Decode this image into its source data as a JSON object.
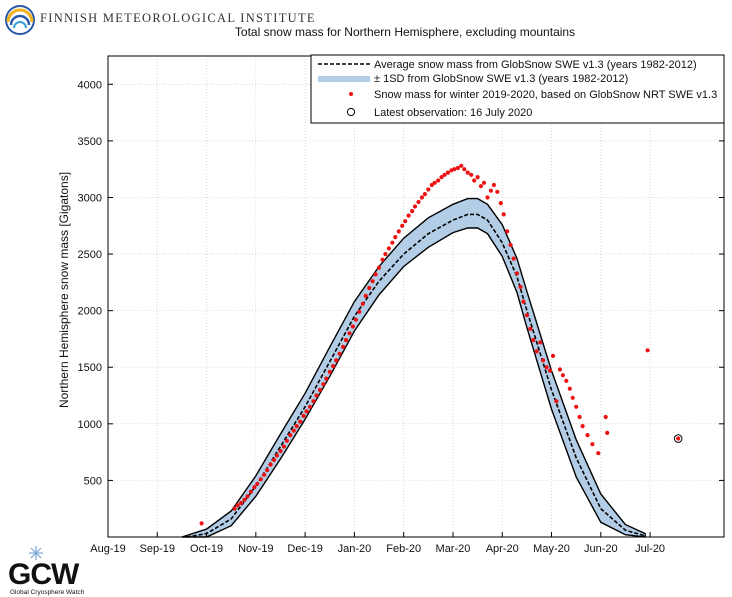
{
  "header": {
    "institute_name": "FINNISH METEOROLOGICAL INSTITUTE",
    "gcw_logo_text": "GCW",
    "gcw_subtitle": "Global Cryosphere Watch"
  },
  "colors": {
    "average_line": "#000000",
    "sd_band": "#b3cde6",
    "observations": "#ee1111",
    "latest_ring": "#000000"
  },
  "chart_data": {
    "type": "line",
    "title": "Total snow mass for Northern Hemisphere, excluding mountains",
    "xlabel": "",
    "ylabel": "Northern Hemisphere snow mass [Gigatons]",
    "categories": [
      "Aug-19",
      "Sep-19",
      "Oct-19",
      "Nov-19",
      "Dec-19",
      "Jan-20",
      "Feb-20",
      "Mar-20",
      "Apr-20",
      "May-20",
      "Jun-20",
      "Jul-20"
    ],
    "xlim_months": [
      0,
      12.5
    ],
    "ylim": [
      0,
      4250
    ],
    "yticks": [
      500,
      1000,
      1500,
      2000,
      2500,
      3000,
      3500,
      4000
    ],
    "grid": true,
    "legend_position": "top-right",
    "series": [
      {
        "name": "Average snow mass from GlobSnow SWE v1.3 (years 1982-2012)",
        "style": "dashed-line",
        "x": [
          1.6,
          2.0,
          2.5,
          3.0,
          3.5,
          4.0,
          4.5,
          5.0,
          5.5,
          6.0,
          6.5,
          7.0,
          7.3,
          7.5,
          7.7,
          8.0,
          8.3,
          8.5,
          9.0,
          9.5,
          10.0,
          10.5,
          10.9
        ],
        "y": [
          0,
          30,
          160,
          450,
          800,
          1150,
          1550,
          1950,
          2260,
          2500,
          2680,
          2800,
          2850,
          2850,
          2800,
          2600,
          2300,
          2000,
          1300,
          700,
          250,
          60,
          10
        ]
      },
      {
        "name": "± 1SD from GlobSnow SWE v1.3 (years 1982-2012)",
        "style": "band",
        "x": [
          1.5,
          2.0,
          2.5,
          3.0,
          3.5,
          4.0,
          4.5,
          5.0,
          5.5,
          6.0,
          6.5,
          7.0,
          7.3,
          7.5,
          7.7,
          8.0,
          8.3,
          8.5,
          9.0,
          9.5,
          10.0,
          10.5,
          10.9
        ],
        "lower": [
          0,
          0,
          100,
          360,
          690,
          1040,
          1420,
          1820,
          2140,
          2390,
          2560,
          2690,
          2730,
          2730,
          2680,
          2480,
          2160,
          1850,
          1130,
          530,
          130,
          20,
          0
        ],
        "upper": [
          0,
          70,
          230,
          540,
          910,
          1270,
          1680,
          2080,
          2390,
          2640,
          2820,
          2940,
          2990,
          2990,
          2940,
          2760,
          2460,
          2170,
          1470,
          860,
          380,
          110,
          30
        ]
      },
      {
        "name": "Snow mass for winter 2019-2020, based on GlobSnow NRT SWE v1.3",
        "style": "dots",
        "x": [
          1.9,
          2.57,
          2.63,
          2.7,
          2.77,
          2.83,
          2.9,
          2.97,
          3.03,
          3.1,
          3.17,
          3.23,
          3.3,
          3.37,
          3.43,
          3.5,
          3.57,
          3.63,
          3.7,
          3.77,
          3.83,
          3.9,
          3.97,
          4.03,
          4.1,
          4.17,
          4.23,
          4.3,
          4.37,
          4.43,
          4.5,
          4.57,
          4.63,
          4.7,
          4.77,
          4.83,
          4.9,
          4.97,
          5.03,
          5.1,
          5.17,
          5.23,
          5.3,
          5.37,
          5.43,
          5.5,
          5.57,
          5.63,
          5.7,
          5.77,
          5.83,
          5.9,
          5.97,
          6.03,
          6.1,
          6.17,
          6.23,
          6.3,
          6.37,
          6.43,
          6.5,
          6.57,
          6.63,
          6.7,
          6.77,
          6.83,
          6.9,
          6.97,
          7.03,
          7.1,
          7.17,
          7.23,
          7.3,
          7.37,
          7.43,
          7.5,
          7.57,
          7.63,
          7.7,
          7.77,
          7.83,
          7.9,
          7.97,
          8.03,
          8.1,
          8.17,
          8.23,
          8.3,
          8.37,
          8.43,
          8.5,
          8.57,
          8.63,
          8.7,
          8.77,
          8.83,
          8.9,
          8.97,
          9.03,
          9.1,
          9.17,
          9.23,
          9.3,
          9.37,
          9.43,
          9.5,
          9.57,
          9.63,
          9.73,
          9.83,
          9.95,
          10.1,
          10.13,
          10.95
        ],
        "y": [
          120,
          250,
          280,
          300,
          330,
          360,
          400,
          440,
          470,
          510,
          550,
          590,
          640,
          680,
          720,
          760,
          800,
          850,
          900,
          940,
          980,
          1020,
          1070,
          1110,
          1150,
          1200,
          1250,
          1300,
          1350,
          1400,
          1460,
          1510,
          1560,
          1620,
          1680,
          1740,
          1800,
          1860,
          1920,
          1990,
          2060,
          2130,
          2200,
          2260,
          2320,
          2380,
          2450,
          2500,
          2550,
          2600,
          2650,
          2700,
          2750,
          2790,
          2840,
          2880,
          2920,
          2960,
          3000,
          3030,
          3070,
          3110,
          3130,
          3150,
          3180,
          3200,
          3220,
          3240,
          3250,
          3260,
          3280,
          3250,
          3220,
          3200,
          3150,
          3180,
          3100,
          3130,
          3000,
          3060,
          3110,
          3050,
          2950,
          2850,
          2700,
          2580,
          2460,
          2330,
          2210,
          2080,
          1960,
          1840,
          1740,
          1640,
          1720,
          1560,
          1500,
          1470,
          1600,
          1200,
          1480,
          1430,
          1380,
          1310,
          1230,
          1150,
          1060,
          980,
          900,
          820,
          740,
          1060,
          920,
          1650
        ],
        "skip_first": true
      }
    ],
    "latest_observation": {
      "label": "Latest observation: 16 July 2020",
      "x": 11.57,
      "y": 870
    },
    "extra_dots": {
      "x": [
        1.9,
        11.3,
        10.1
      ],
      "y": [
        120,
        1650,
        1060
      ]
    }
  }
}
